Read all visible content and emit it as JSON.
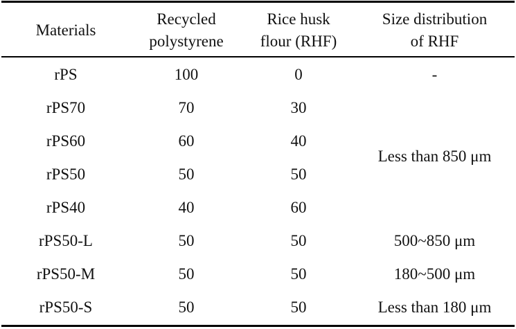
{
  "table": {
    "headers": [
      {
        "line1": "Materials",
        "line2": ""
      },
      {
        "line1": "Recycled",
        "line2": "polystyrene"
      },
      {
        "line1": "Rice husk",
        "line2": "flour (RHF)"
      },
      {
        "line1": "Size distribution",
        "line2": "of RHF"
      }
    ],
    "rows": [
      {
        "material": "rPS",
        "polystyrene": "100",
        "rhf": "0",
        "size": "-"
      },
      {
        "material": "rPS70",
        "polystyrene": "70",
        "rhf": "30",
        "size": ""
      },
      {
        "material": "rPS60",
        "polystyrene": "60",
        "rhf": "40",
        "size": ""
      },
      {
        "material": "rPS50",
        "polystyrene": "50",
        "rhf": "50",
        "size": ""
      },
      {
        "material": "rPS40",
        "polystyrene": "40",
        "rhf": "60",
        "size": ""
      },
      {
        "material": "rPS50-L",
        "polystyrene": "50",
        "rhf": "50",
        "size": "500~850 μm"
      },
      {
        "material": "rPS50-M",
        "polystyrene": "50",
        "rhf": "50",
        "size": "180~500 μm"
      },
      {
        "material": "rPS50-S",
        "polystyrene": "50",
        "rhf": "50",
        "size": "Less than 180 μm"
      }
    ],
    "merged_size": "Less than 850 μm"
  }
}
